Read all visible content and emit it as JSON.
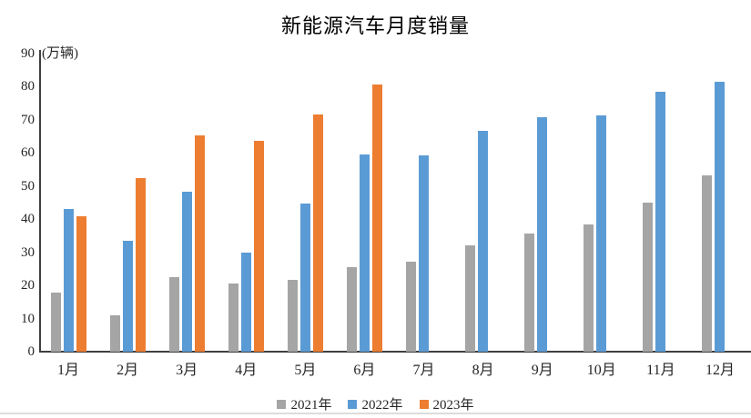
{
  "title": "新能源汽车月度销量",
  "chart_data": {
    "type": "bar",
    "title": "新能源汽车月度销量",
    "ylabel": "(万辆)",
    "xlabel": "",
    "categories": [
      "1月",
      "2月",
      "3月",
      "4月",
      "5月",
      "6月",
      "7月",
      "8月",
      "9月",
      "10月",
      "11月",
      "12月"
    ],
    "series": [
      {
        "name": "2021年",
        "color": "#A5A5A5",
        "values": [
          17.9,
          11.0,
          22.6,
          20.6,
          21.7,
          25.6,
          27.1,
          32.1,
          35.7,
          38.3,
          45.0,
          53.1
        ]
      },
      {
        "name": "2022年",
        "color": "#5B9BD5",
        "values": [
          43.1,
          33.4,
          48.4,
          29.9,
          44.7,
          59.6,
          59.3,
          66.6,
          70.8,
          71.4,
          78.6,
          81.4
        ]
      },
      {
        "name": "2023年",
        "color": "#ED7D31",
        "values": [
          40.8,
          52.5,
          65.3,
          63.6,
          71.7,
          80.6,
          null,
          null,
          null,
          null,
          null,
          null
        ]
      }
    ],
    "y_ticks": [
      0,
      10,
      20,
      30,
      40,
      50,
      60,
      70,
      80,
      90
    ],
    "ylim": [
      0,
      90
    ],
    "grid": false,
    "legend_position": "bottom"
  }
}
